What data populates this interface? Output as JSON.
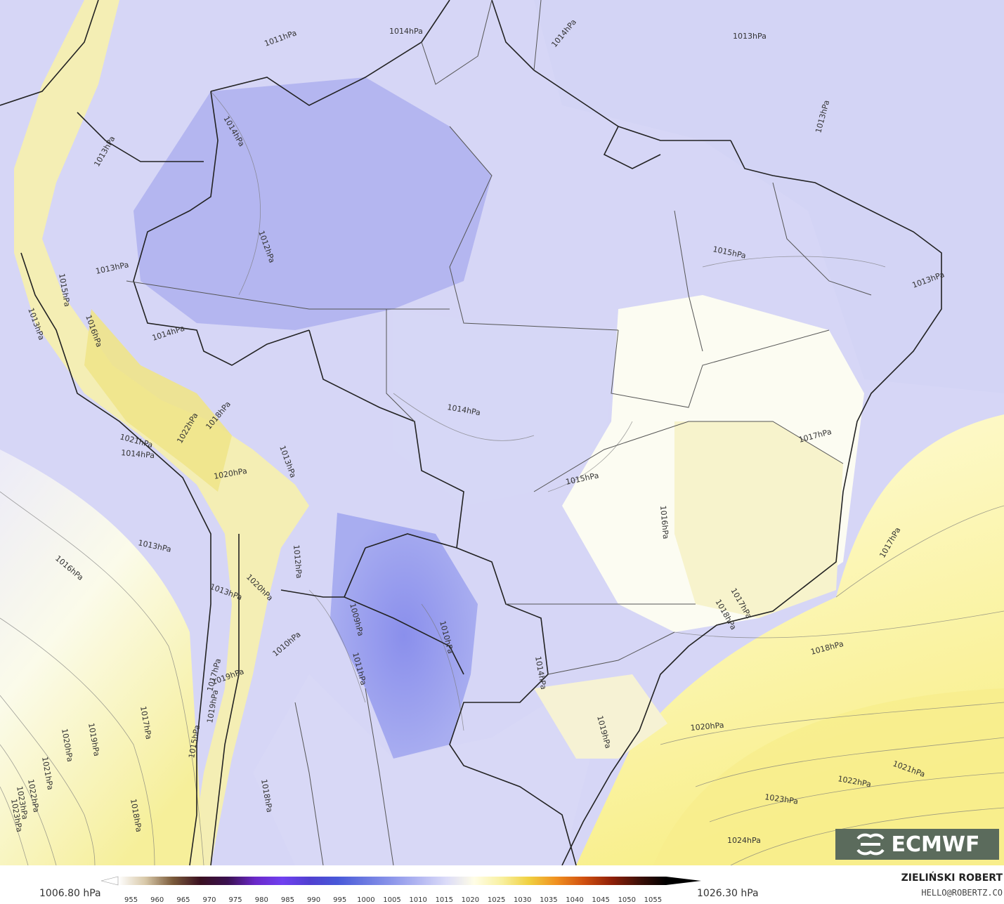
{
  "map": {
    "isobar_labels": [
      "1014hPa",
      "1014hPa",
      "1013hPa",
      "1011hPa",
      "1013hPa",
      "1014hPa",
      "1013hPa",
      "1012hPa",
      "1013hPa",
      "1015hPa",
      "1016hPa",
      "1013hPa",
      "1014hPa",
      "1014hPa",
      "1015hPa",
      "1017hPa",
      "1015hPa",
      "1021hPa",
      "1014hPa",
      "1022hPa",
      "1018hPa",
      "1013hPa",
      "1020hPa",
      "1016hPa",
      "1017hPa",
      "1013hPa",
      "1016hPa",
      "1012hPa",
      "1020hPa",
      "1013hPa",
      "1009hPa",
      "1010hPa",
      "1018hPa",
      "1014hPa",
      "1011hPa",
      "1019hPa",
      "1018hPa",
      "1020hPa",
      "1017hPa",
      "1019hPa",
      "1021hPa",
      "1022hPa",
      "1023hPa",
      "1023hPa",
      "1024hPa",
      "1017hPa",
      "1019hPa",
      "1020hPa",
      "1021hPa",
      "1022hPa",
      "1023hPa",
      "1018hPa",
      "1015hPa",
      "1017hPa",
      "1018hPa",
      "1019hPa",
      "1010hPa",
      "1013hPa"
    ]
  },
  "legend": {
    "min_label": "1006.80 hPa",
    "max_label": "1026.30 hPa",
    "ticks": [
      "955",
      "960",
      "965",
      "970",
      "975",
      "980",
      "985",
      "990",
      "995",
      "1000",
      "1005",
      "1010",
      "1015",
      "1020",
      "1025",
      "1030",
      "1035",
      "1040",
      "1045",
      "1050",
      "1055"
    ],
    "colors": [
      "#ffffff",
      "#d8c8a8",
      "#7a5a3a",
      "#3a1020",
      "#3a1050",
      "#6a28c8",
      "#7040f0",
      "#5040d0",
      "#4858d8",
      "#6a78e0",
      "#8c96ea",
      "#b4b8f2",
      "#dcdcf8",
      "#fffde6",
      "#f8f0a0",
      "#f0d040",
      "#f09020",
      "#d05010",
      "#902008",
      "#401008",
      "#000000"
    ]
  },
  "brand": {
    "logo_text": "ECMWF",
    "author": "ZIELIŃSKI ROBERT",
    "email": "HELLO@ROBERTZ.CO"
  }
}
